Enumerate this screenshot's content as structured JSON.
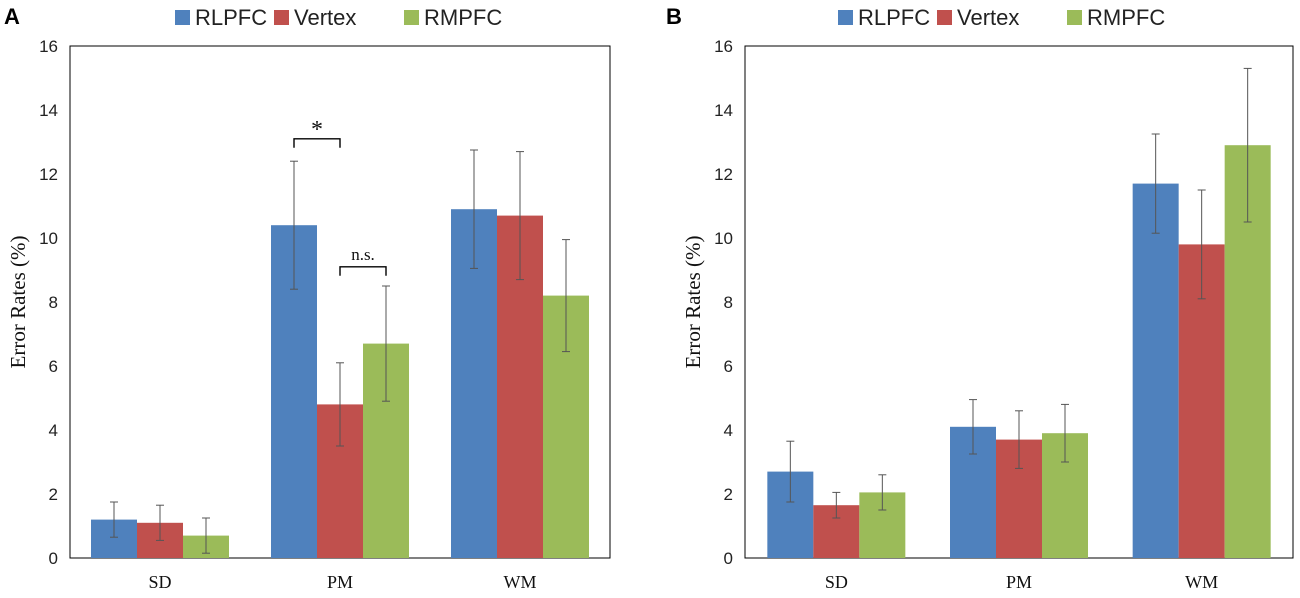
{
  "chart_data": [
    {
      "panel": "A",
      "type": "bar",
      "categories": [
        "SD",
        "PM",
        "WM"
      ],
      "series": [
        {
          "name": "RLPFC",
          "color": "#4F81BD",
          "values": [
            1.2,
            10.4,
            10.9
          ],
          "errors": [
            0.55,
            2.0,
            1.85
          ]
        },
        {
          "name": "Vertex",
          "color": "#C0504D",
          "values": [
            1.1,
            4.8,
            10.7
          ],
          "errors": [
            0.55,
            1.3,
            2.0
          ]
        },
        {
          "name": "RMPFC",
          "color": "#9BBB59",
          "values": [
            0.7,
            6.7,
            8.2
          ],
          "errors": [
            0.55,
            1.8,
            1.75
          ]
        }
      ],
      "ylabel": "Error Rates (%)",
      "ylim": [
        0,
        16
      ],
      "yticks": [
        0,
        2,
        4,
        6,
        8,
        10,
        12,
        14,
        16
      ],
      "annotations": [
        {
          "text": "*",
          "category": "PM",
          "from_series": 0,
          "to_series": 1,
          "level": 13.1
        },
        {
          "text": "n.s.",
          "category": "PM",
          "from_series": 1,
          "to_series": 2,
          "level": 9.1
        }
      ]
    },
    {
      "panel": "B",
      "type": "bar",
      "categories": [
        "SD",
        "PM",
        "WM"
      ],
      "series": [
        {
          "name": "RLPFC",
          "color": "#4F81BD",
          "values": [
            2.7,
            4.1,
            11.7
          ],
          "errors": [
            0.95,
            0.85,
            1.55
          ]
        },
        {
          "name": "Vertex",
          "color": "#C0504D",
          "values": [
            1.65,
            3.7,
            9.8
          ],
          "errors": [
            0.4,
            0.9,
            1.7
          ]
        },
        {
          "name": "RMPFC",
          "color": "#9BBB59",
          "values": [
            2.05,
            3.9,
            12.9
          ],
          "errors": [
            0.55,
            0.9,
            2.4
          ]
        }
      ],
      "ylabel": "Error Rates (%)",
      "ylim": [
        0,
        16
      ],
      "yticks": [
        0,
        2,
        4,
        6,
        8,
        10,
        12,
        14,
        16
      ],
      "annotations": []
    }
  ]
}
